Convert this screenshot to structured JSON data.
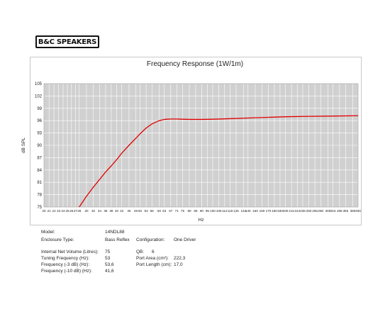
{
  "brand": {
    "logo_text": "B&C SPEAKERS",
    "accent": "#cc0000"
  },
  "chart_data": {
    "type": "line",
    "title": "Frequency Response (1W/1m)",
    "xlabel": "Hz",
    "ylabel": "dB SPL",
    "x_scale": "log",
    "xlim": [
      20,
      400
    ],
    "ylim": [
      75,
      105
    ],
    "x_ticks": [
      20,
      21,
      22,
      23,
      24,
      25,
      26,
      27,
      28,
      30,
      32,
      34,
      36,
      38,
      40,
      42,
      45,
      48,
      50,
      53,
      56,
      60,
      63,
      67,
      71,
      75,
      80,
      85,
      90,
      95,
      100,
      106,
      112,
      118,
      125,
      134,
      140,
      150,
      160,
      170,
      180,
      190,
      200,
      212,
      224,
      236,
      250,
      265,
      280,
      300,
      315,
      335,
      355,
      380,
      400
    ],
    "y_ticks": [
      75,
      78,
      81,
      84,
      87,
      90,
      93,
      96,
      99,
      102,
      105
    ],
    "grid": true,
    "plot_background": "#d0d0d0",
    "series_color": "#e00000",
    "series": [
      {
        "x": [
          28,
          30,
          32,
          34,
          36,
          38,
          40,
          42,
          45,
          48,
          50,
          53,
          56,
          60,
          63,
          67,
          71,
          75,
          80,
          90,
          100,
          120,
          150,
          200,
          250,
          300,
          400
        ],
        "values": [
          75.0,
          77.6,
          79.8,
          81.7,
          83.5,
          85.0,
          86.5,
          88.1,
          90.0,
          91.7,
          92.8,
          94.2,
          95.2,
          96.0,
          96.3,
          96.4,
          96.4,
          96.35,
          96.3,
          96.3,
          96.35,
          96.5,
          96.7,
          96.95,
          97.05,
          97.1,
          97.2
        ]
      }
    ]
  },
  "specs": {
    "model_label": "Model:",
    "model_value": "14NDL88",
    "enclosure_label": "Enclosure Type:",
    "enclosure_value": "Bass Reflex",
    "configuration_label": "Configuration:",
    "configuration_value": "One Driver",
    "volume_label": "Internal Net Volume (Litres):",
    "volume_value": "75",
    "tuning_label": "Tuning Frequency (Hz):",
    "tuning_value": "53",
    "f3_label": "Frequency (-3 dB) (Hz):",
    "f3_value": "53,6",
    "f10_label": "Frequency (-10 dB) (Hz):",
    "f10_value": "41,6",
    "qb_label": "QB:",
    "qb_value": "6",
    "port_area_label": "Port Area (cm²):",
    "port_area_value": "222,3",
    "port_length_label": "Port Length (cm):",
    "port_length_value": "17,0"
  }
}
